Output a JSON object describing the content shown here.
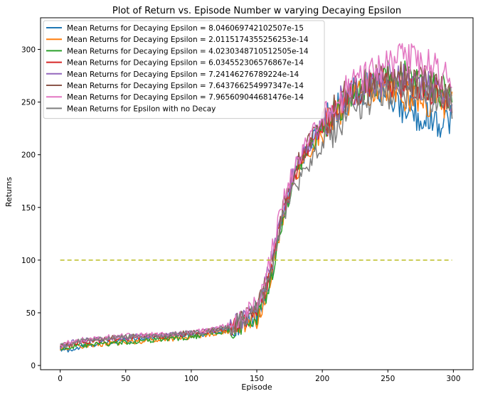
{
  "chart_data": {
    "type": "line",
    "title": "Plot of Return vs. Episode Number w varying Decaying Epsilon",
    "xlabel": "Episode",
    "ylabel": "Returns",
    "xlim": [
      -15,
      315
    ],
    "ylim": [
      -4,
      330
    ],
    "xticks": [
      0,
      50,
      100,
      150,
      200,
      250,
      300
    ],
    "yticks": [
      0,
      50,
      100,
      150,
      200,
      250,
      300
    ],
    "legend_position": "top-left",
    "threshold": {
      "value": 100,
      "x_range": [
        0,
        299
      ],
      "color": "#bcbd22",
      "style": "dashed"
    },
    "series": [
      {
        "name": "Mean Returns for Decaying Epsilon = 8.046069742102507e-15",
        "color": "#1f77b4",
        "x": [
          0,
          10,
          20,
          30,
          40,
          50,
          60,
          70,
          80,
          90,
          100,
          110,
          120,
          130,
          140,
          150,
          155,
          160,
          165,
          170,
          175,
          180,
          190,
          200,
          210,
          220,
          230,
          240,
          250,
          260,
          270,
          280,
          290,
          299
        ],
        "y": [
          15,
          15,
          19,
          21,
          22,
          24,
          26,
          27,
          27,
          28,
          29,
          30,
          32,
          35,
          40,
          48,
          60,
          80,
          110,
          140,
          165,
          185,
          210,
          228,
          243,
          255,
          262,
          265,
          255,
          245,
          240,
          235,
          232,
          235
        ]
      },
      {
        "name": "Mean Returns for Decaying Epsilon = 2.0115174355256253e-14",
        "color": "#ff7f0e",
        "x": [
          0,
          10,
          20,
          30,
          40,
          50,
          60,
          70,
          80,
          90,
          100,
          110,
          120,
          130,
          140,
          150,
          155,
          160,
          165,
          170,
          175,
          180,
          190,
          200,
          210,
          220,
          230,
          240,
          250,
          260,
          270,
          280,
          290,
          299
        ],
        "y": [
          16,
          18,
          19,
          20,
          21,
          22,
          23,
          24,
          25,
          26,
          27,
          29,
          31,
          33,
          37,
          44,
          58,
          80,
          110,
          140,
          165,
          182,
          205,
          222,
          238,
          250,
          258,
          262,
          262,
          258,
          255,
          252,
          250,
          250
        ]
      },
      {
        "name": "Mean Returns for Decaying Epsilon = 4.0230348710512505e-14",
        "color": "#2ca02c",
        "x": [
          0,
          10,
          20,
          30,
          40,
          50,
          60,
          70,
          80,
          90,
          100,
          110,
          120,
          130,
          140,
          150,
          155,
          160,
          165,
          170,
          175,
          180,
          190,
          200,
          210,
          220,
          230,
          240,
          250,
          260,
          270,
          280,
          290,
          299
        ],
        "y": [
          16,
          18,
          19,
          20,
          21,
          22,
          23,
          24,
          25,
          26,
          27,
          29,
          31,
          34,
          38,
          45,
          58,
          80,
          105,
          135,
          160,
          180,
          205,
          225,
          242,
          255,
          265,
          270,
          275,
          275,
          272,
          268,
          262,
          258
        ]
      },
      {
        "name": "Mean Returns for Decaying Epsilon = 6.034552306576867e-14",
        "color": "#d62728",
        "x": [
          0,
          10,
          20,
          30,
          40,
          50,
          60,
          70,
          80,
          90,
          100,
          110,
          120,
          130,
          140,
          150,
          155,
          160,
          165,
          170,
          175,
          180,
          190,
          200,
          210,
          220,
          230,
          240,
          250,
          260,
          270,
          280,
          290,
          299
        ],
        "y": [
          17,
          21,
          23,
          24,
          25,
          26,
          27,
          28,
          28,
          29,
          30,
          31,
          33,
          36,
          42,
          52,
          65,
          88,
          115,
          145,
          168,
          185,
          208,
          226,
          242,
          255,
          263,
          268,
          270,
          270,
          268,
          265,
          258,
          252
        ]
      },
      {
        "name": "Mean Returns for Decaying Epsilon = 7.24146276789224e-14",
        "color": "#9467bd",
        "x": [
          0,
          10,
          20,
          30,
          40,
          50,
          60,
          70,
          80,
          90,
          100,
          110,
          120,
          130,
          140,
          150,
          155,
          160,
          165,
          170,
          175,
          180,
          190,
          200,
          210,
          220,
          230,
          240,
          250,
          260,
          270,
          280,
          290,
          299
        ],
        "y": [
          18,
          22,
          24,
          25,
          26,
          27,
          28,
          28,
          29,
          30,
          31,
          32,
          34,
          38,
          45,
          58,
          72,
          95,
          122,
          150,
          172,
          188,
          210,
          228,
          245,
          257,
          265,
          270,
          272,
          272,
          270,
          266,
          260,
          255
        ]
      },
      {
        "name": "Mean Returns for Decaying Epsilon = 7.643766254997347e-14",
        "color": "#8c564b",
        "x": [
          0,
          10,
          20,
          30,
          40,
          50,
          60,
          70,
          80,
          90,
          100,
          110,
          120,
          130,
          140,
          150,
          155,
          160,
          165,
          170,
          175,
          180,
          190,
          200,
          210,
          220,
          230,
          240,
          250,
          260,
          270,
          280,
          290,
          299
        ],
        "y": [
          18,
          22,
          24,
          25,
          26,
          27,
          28,
          28,
          29,
          30,
          31,
          32,
          34,
          38,
          44,
          56,
          70,
          92,
          120,
          150,
          172,
          190,
          212,
          230,
          246,
          258,
          266,
          272,
          275,
          275,
          272,
          268,
          262,
          256
        ]
      },
      {
        "name": "Mean Returns for Decaying Epsilon = 7.965609044681476e-14",
        "color": "#e377c2",
        "x": [
          0,
          10,
          20,
          30,
          40,
          50,
          60,
          70,
          80,
          90,
          100,
          110,
          120,
          130,
          140,
          150,
          155,
          160,
          165,
          170,
          175,
          180,
          190,
          200,
          210,
          220,
          230,
          240,
          250,
          260,
          270,
          280,
          290,
          299
        ],
        "y": [
          19,
          23,
          25,
          26,
          27,
          28,
          29,
          29,
          30,
          31,
          32,
          33,
          35,
          39,
          46,
          60,
          75,
          100,
          128,
          155,
          175,
          192,
          215,
          232,
          248,
          262,
          272,
          280,
          286,
          290,
          290,
          286,
          278,
          270
        ]
      },
      {
        "name": "Mean Returns for Epsilon with no Decay",
        "color": "#7f7f7f",
        "x": [
          0,
          10,
          20,
          30,
          40,
          50,
          60,
          70,
          80,
          90,
          100,
          110,
          120,
          130,
          140,
          150,
          155,
          160,
          165,
          170,
          175,
          180,
          190,
          200,
          210,
          220,
          230,
          240,
          250,
          260,
          270,
          280,
          290,
          299
        ],
        "y": [
          18,
          22,
          24,
          25,
          26,
          27,
          28,
          28,
          29,
          30,
          31,
          32,
          34,
          37,
          43,
          54,
          67,
          88,
          115,
          140,
          158,
          170,
          190,
          210,
          225,
          238,
          248,
          255,
          258,
          258,
          256,
          253,
          250,
          248
        ]
      }
    ]
  }
}
